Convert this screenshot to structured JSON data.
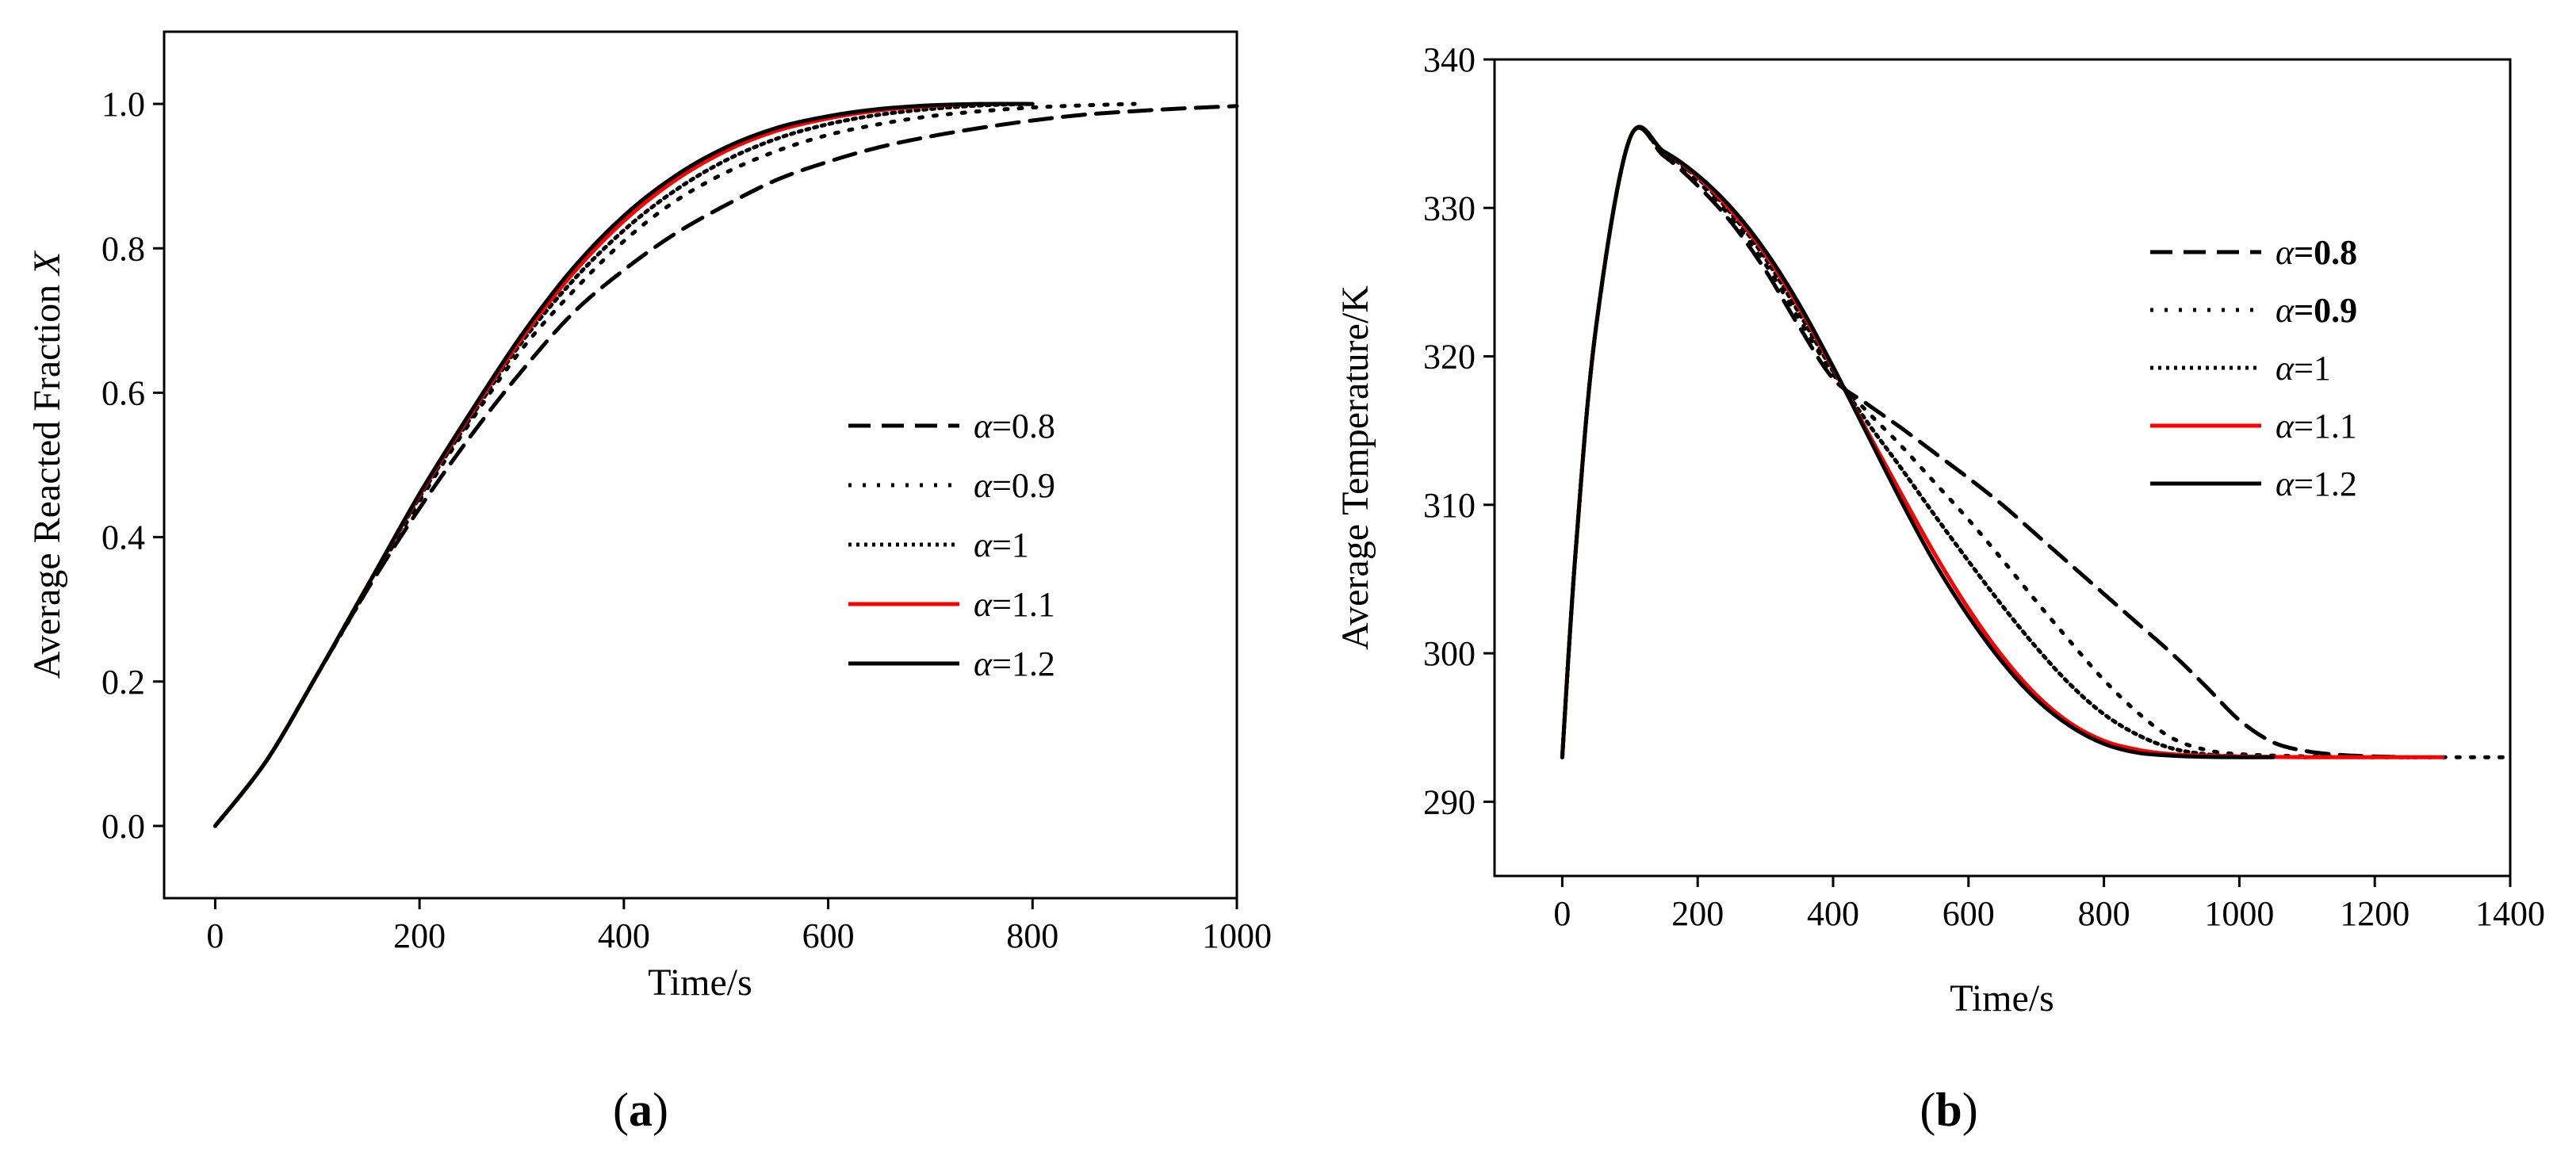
{
  "chart_data": [
    {
      "type": "line",
      "panel_label": "a",
      "xlabel": "Time/s",
      "ylabel": "Average Reacted Fraction",
      "ylabel_symbol": "X",
      "xlim": [
        -50,
        1000
      ],
      "ylim": [
        -0.1,
        1.1
      ],
      "xticks": [
        0,
        200,
        400,
        600,
        800,
        1000
      ],
      "yticks": [
        0.0,
        0.2,
        0.4,
        0.6,
        0.8,
        1.0
      ],
      "ytick_labels": [
        "0.0",
        "0.2",
        "0.4",
        "0.6",
        "0.8",
        "1.0"
      ],
      "legend_position": "center-right",
      "series": [
        {
          "name": "α=0.8",
          "symbol": "α",
          "value_text": "=0.8",
          "bold": false,
          "style": "dashed",
          "color": "#000000",
          "x": [
            0,
            50,
            100,
            150,
            200,
            250,
            300,
            350,
            400,
            450,
            500,
            550,
            600,
            650,
            700,
            750,
            800,
            850,
            900,
            950,
            1000
          ],
          "y": [
            0.0,
            0.09,
            0.21,
            0.33,
            0.44,
            0.54,
            0.63,
            0.71,
            0.77,
            0.82,
            0.86,
            0.895,
            0.92,
            0.94,
            0.955,
            0.967,
            0.977,
            0.985,
            0.99,
            0.994,
            0.997
          ]
        },
        {
          "name": "α=0.9",
          "symbol": "α",
          "value_text": "=0.9",
          "bold": false,
          "style": "dotted-sparse",
          "color": "#000000",
          "x": [
            0,
            50,
            100,
            150,
            200,
            250,
            300,
            350,
            400,
            450,
            500,
            550,
            600,
            650,
            700,
            750,
            800,
            850,
            900
          ],
          "y": [
            0.0,
            0.09,
            0.21,
            0.33,
            0.45,
            0.56,
            0.66,
            0.74,
            0.81,
            0.865,
            0.905,
            0.935,
            0.957,
            0.972,
            0.983,
            0.99,
            0.995,
            0.998,
            1.0
          ]
        },
        {
          "name": "α=1",
          "symbol": "α",
          "value_text": "=1",
          "bold": false,
          "style": "dotted-dense",
          "color": "#000000",
          "x": [
            0,
            50,
            100,
            150,
            200,
            250,
            300,
            350,
            400,
            450,
            500,
            550,
            600,
            650,
            700,
            750,
            800
          ],
          "y": [
            0.0,
            0.09,
            0.21,
            0.335,
            0.455,
            0.565,
            0.67,
            0.755,
            0.825,
            0.88,
            0.922,
            0.952,
            0.972,
            0.985,
            0.993,
            0.998,
            1.0
          ]
        },
        {
          "name": "α=1.1",
          "symbol": "α",
          "value_text": "=1.1",
          "bold": false,
          "style": "solid",
          "color": "#ff0000",
          "x": [
            0,
            50,
            100,
            150,
            200,
            250,
            300,
            350,
            400,
            450,
            500,
            550,
            600,
            650,
            700,
            750
          ],
          "y": [
            0.0,
            0.09,
            0.21,
            0.335,
            0.458,
            0.57,
            0.675,
            0.765,
            0.838,
            0.894,
            0.935,
            0.963,
            0.98,
            0.991,
            0.997,
            1.0
          ]
        },
        {
          "name": "α=1.2",
          "symbol": "α",
          "value_text": "=1.2",
          "bold": false,
          "style": "solid",
          "color": "#000000",
          "x": [
            0,
            50,
            100,
            150,
            200,
            250,
            300,
            350,
            400,
            450,
            500,
            550,
            600,
            650,
            700,
            750,
            800
          ],
          "y": [
            0.0,
            0.09,
            0.21,
            0.335,
            0.46,
            0.573,
            0.68,
            0.772,
            0.845,
            0.9,
            0.94,
            0.967,
            0.983,
            0.993,
            0.998,
            1.0,
            1.0
          ]
        }
      ]
    },
    {
      "type": "line",
      "panel_label": "b",
      "xlabel": "Time/s",
      "ylabel": "Average Temperature/K",
      "xlim": [
        -100,
        1400
      ],
      "ylim": [
        285,
        340
      ],
      "xticks": [
        0,
        200,
        400,
        600,
        800,
        1000,
        1200,
        1400
      ],
      "yticks": [
        290,
        300,
        310,
        320,
        330,
        340
      ],
      "legend_position": "top-right",
      "series": [
        {
          "name": "α=0.8",
          "symbol": "α",
          "value_text": "=0.8",
          "bold": true,
          "style": "dashed",
          "color": "#000000",
          "x": [
            0,
            20,
            50,
            100,
            150,
            200,
            250,
            300,
            350,
            400,
            450,
            500,
            550,
            600,
            650,
            700,
            750,
            800,
            850,
            900,
            950,
            1000,
            1050,
            1100,
            1150,
            1200,
            1250
          ],
          "y": [
            293,
            307,
            322,
            334.7,
            333.5,
            331.5,
            329,
            325.8,
            322,
            318.5,
            316.8,
            315.2,
            313.5,
            311.8,
            310,
            308,
            306,
            304,
            302,
            300,
            297.8,
            295.5,
            294,
            293.4,
            293.15,
            293.05,
            293
          ]
        },
        {
          "name": "α=0.9",
          "symbol": "α",
          "value_text": "=0.9",
          "bold": true,
          "style": "dotted-sparse",
          "color": "#000000",
          "x": [
            0,
            20,
            50,
            100,
            150,
            200,
            250,
            300,
            350,
            400,
            450,
            500,
            550,
            600,
            650,
            700,
            750,
            800,
            850,
            900,
            950,
            1000,
            1100,
            1200,
            1300,
            1400
          ],
          "y": [
            293,
            307,
            322,
            334.7,
            333.6,
            331.8,
            329.3,
            326.2,
            322.5,
            318.8,
            316.3,
            314,
            311.5,
            309,
            306.3,
            303.5,
            300.8,
            298.2,
            296,
            294.3,
            293.5,
            293.2,
            293.05,
            293,
            293,
            293
          ]
        },
        {
          "name": "α=1",
          "symbol": "α",
          "value_text": "=1",
          "bold": false,
          "style": "dotted-dense",
          "color": "#000000",
          "x": [
            0,
            20,
            50,
            100,
            150,
            200,
            250,
            300,
            350,
            400,
            450,
            500,
            550,
            600,
            650,
            700,
            750,
            800,
            850,
            900,
            950,
            1000,
            1100
          ],
          "y": [
            293,
            307,
            322,
            334.7,
            333.7,
            332,
            329.6,
            326.6,
            322.9,
            319,
            315.6,
            312.5,
            309.3,
            306.2,
            303.2,
            300.4,
            297.9,
            295.9,
            294.5,
            293.6,
            293.2,
            293.05,
            293
          ]
        },
        {
          "name": "α=1.1",
          "symbol": "α",
          "value_text": "=1.1",
          "bold": false,
          "style": "solid",
          "color": "#ff0000",
          "x": [
            0,
            20,
            50,
            100,
            150,
            200,
            250,
            300,
            350,
            400,
            450,
            500,
            550,
            600,
            650,
            700,
            750,
            800,
            850,
            900,
            950,
            1000,
            1100,
            1200,
            1300
          ],
          "y": [
            293,
            307,
            322,
            334.7,
            333.8,
            332.1,
            329.8,
            326.9,
            323.3,
            319.2,
            315,
            310.8,
            306.7,
            303,
            299.8,
            297.2,
            295.3,
            294.1,
            293.5,
            293.2,
            293.1,
            293.05,
            293,
            293,
            293
          ]
        },
        {
          "name": "α=1.2",
          "symbol": "α",
          "value_text": "=1.2",
          "bold": false,
          "style": "solid",
          "color": "#000000",
          "x": [
            0,
            20,
            50,
            100,
            150,
            200,
            250,
            300,
            350,
            400,
            450,
            500,
            550,
            600,
            650,
            700,
            750,
            800,
            850,
            900,
            950,
            1000,
            1050
          ],
          "y": [
            293,
            307,
            322,
            334.7,
            333.8,
            332.2,
            330,
            327.1,
            323.5,
            319.3,
            314.8,
            310.3,
            306.1,
            302.5,
            299.4,
            296.9,
            295.1,
            293.9,
            293.3,
            293.1,
            293.02,
            293,
            293
          ]
        }
      ]
    }
  ]
}
